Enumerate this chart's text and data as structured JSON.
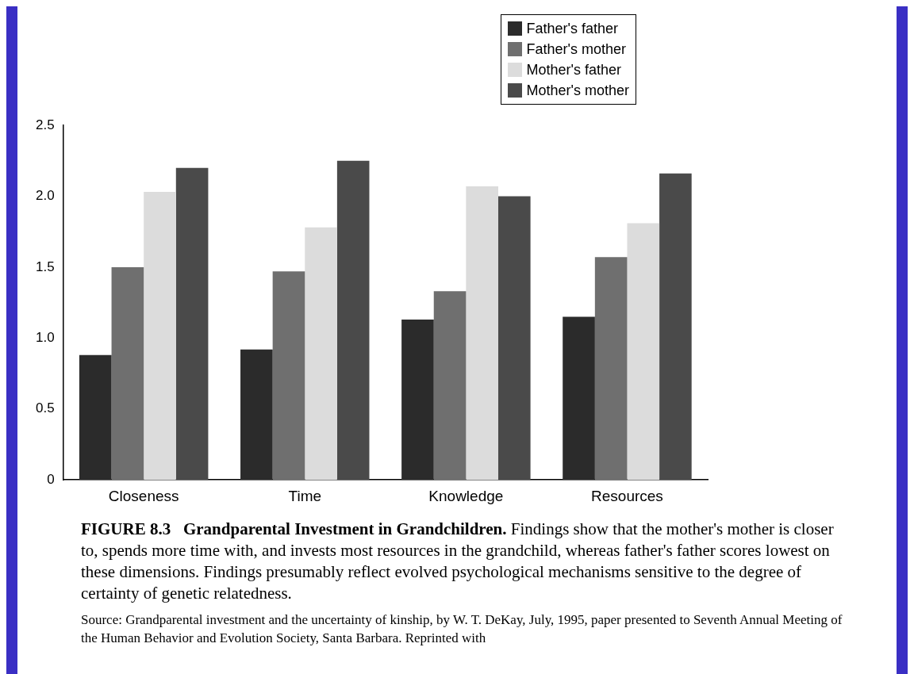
{
  "chart_data": {
    "type": "bar",
    "title": "FIGURE 8.3",
    "subtitle": "Grandparental Investment in Grandchildren.",
    "categories": [
      "Closeness",
      "Time",
      "Knowledge",
      "Resources"
    ],
    "series": [
      {
        "name": "Father's father",
        "color": "#2b2b2b",
        "values": [
          0.88,
          0.92,
          1.13,
          1.15
        ]
      },
      {
        "name": "Father's mother",
        "color": "#6f6f6f",
        "values": [
          1.5,
          1.47,
          1.33,
          1.57
        ]
      },
      {
        "name": "Mother's father",
        "color": "#dcdcdc",
        "values": [
          2.03,
          1.78,
          2.07,
          1.81
        ]
      },
      {
        "name": "Mother's mother",
        "color": "#4a4a4a",
        "values": [
          2.2,
          2.25,
          2.0,
          2.16
        ]
      }
    ],
    "ylim": [
      0,
      2.5
    ],
    "yticks": [
      0,
      {
        "value": 0.5,
        "label": "0.5"
      },
      {
        "value": 1,
        "label": "1.0"
      },
      {
        "value": 1.5,
        "label": "1.5"
      },
      {
        "value": 2,
        "label": "2.0"
      },
      {
        "value": 2.5,
        "label": "2.5"
      }
    ],
    "grid": false,
    "legend": "top right",
    "annotations": [
      "Findings show that the mother's mother is closer to, spends more time with, and invests most resources in the grandchild, whereas father's father scores lowest on these dimensions. Findings presumably reflect evolved psychological mechanisms sensitive to the degree of certainty of genetic relatedness.",
      "Source: Grandparental investment and the uncertainty of kinship, by W. T. DeKay, July, 1995, paper presented to Seventh Annual Meeting of the Human Behavior and Evolution Society, Santa Barbara. Reprinted with"
    ]
  }
}
